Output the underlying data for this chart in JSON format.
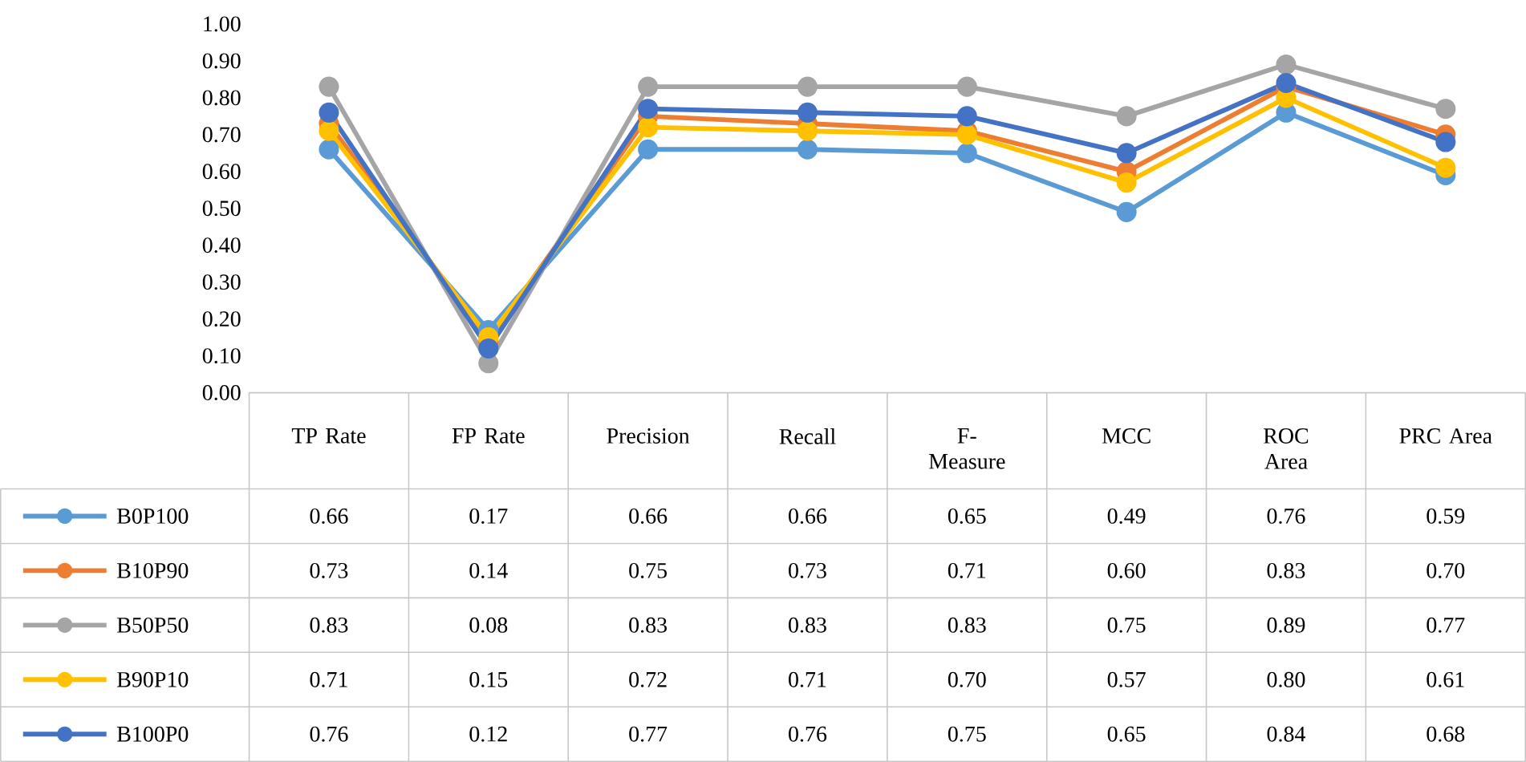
{
  "chart_data": {
    "type": "line",
    "categories": [
      "TP Rate",
      "FP Rate",
      "Precision",
      "Recall",
      "F-Measure",
      "MCC",
      "ROC Area",
      "PRC Area"
    ],
    "ylim": [
      0,
      1
    ],
    "yticks": [
      {
        "value": 0,
        "label": "0.00"
      },
      {
        "value": 0.1,
        "label": "0.10"
      },
      {
        "value": 0.2,
        "label": "0.20"
      },
      {
        "value": 0.3,
        "label": "0.30"
      },
      {
        "value": 0.4,
        "label": "0.40"
      },
      {
        "value": 0.5,
        "label": "0.50"
      },
      {
        "value": 0.6,
        "label": "0.60"
      },
      {
        "value": 0.7,
        "label": "0.70"
      },
      {
        "value": 0.8,
        "label": "0.80"
      },
      {
        "value": 0.9,
        "label": "0.90"
      },
      {
        "value": 1,
        "label": "1.00"
      }
    ],
    "marker": "circle",
    "line_style": "solid",
    "legend": "bottom left",
    "grid": false,
    "series": [
      {
        "name": "B0P100",
        "color": "#5b9bd5",
        "values": [
          0.66,
          0.17,
          0.66,
          0.66,
          0.65,
          0.49,
          0.76,
          0.59
        ],
        "value_labels": [
          "0.66",
          "0.17",
          "0.66",
          "0.66",
          "0.65",
          "0.49",
          "0.76",
          "0.59"
        ]
      },
      {
        "name": "B10P90",
        "color": "#ed7d31",
        "values": [
          0.73,
          0.14,
          0.75,
          0.73,
          0.71,
          0.6,
          0.83,
          0.7
        ],
        "value_labels": [
          "0.73",
          "0.14",
          "0.75",
          "0.73",
          "0.71",
          "0.60",
          "0.83",
          "0.70"
        ]
      },
      {
        "name": "B50P50",
        "color": "#a5a5a5",
        "values": [
          0.83,
          0.08,
          0.83,
          0.83,
          0.83,
          0.75,
          0.89,
          0.77
        ],
        "value_labels": [
          "0.83",
          "0.08",
          "0.83",
          "0.83",
          "0.83",
          "0.75",
          "0.89",
          "0.77"
        ]
      },
      {
        "name": "B90P10",
        "color": "#ffc000",
        "values": [
          0.71,
          0.15,
          0.72,
          0.71,
          0.7,
          0.57,
          0.8,
          0.61
        ],
        "value_labels": [
          "0.71",
          "0.15",
          "0.72",
          "0.71",
          "0.70",
          "0.57",
          "0.80",
          "0.61"
        ]
      },
      {
        "name": "B100P0",
        "color": "#4472c4",
        "values": [
          0.76,
          0.12,
          0.77,
          0.76,
          0.75,
          0.65,
          0.84,
          0.68
        ],
        "value_labels": [
          "0.76",
          "0.12",
          "0.77",
          "0.76",
          "0.75",
          "0.65",
          "0.84",
          "0.68"
        ]
      }
    ]
  }
}
